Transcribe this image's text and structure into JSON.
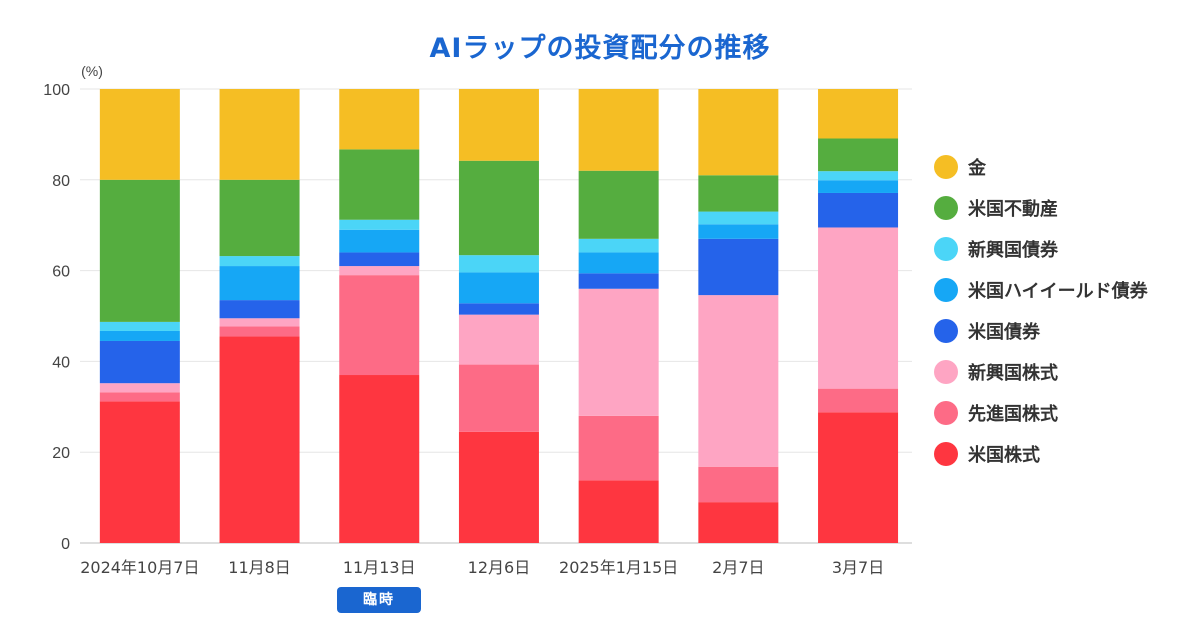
{
  "chart_data": {
    "type": "bar",
    "stacked": true,
    "title": "AIラップの投資配分の推移",
    "ylabel": "(%)",
    "xlabel": "",
    "ylim": [
      0,
      100
    ],
    "yticks": [
      0,
      20,
      40,
      60,
      80,
      100
    ],
    "grid": true,
    "legend_position": "right",
    "categories": [
      "2024年10月7日",
      "11月8日",
      "11月13日",
      "12月6日",
      "2025年1月15日",
      "2月7日",
      "3月7日"
    ],
    "badges": [
      {
        "category": "11月13日",
        "text": "臨時"
      }
    ],
    "series": [
      {
        "name": "米国株式",
        "color": "#fe3640",
        "values": [
          31.2,
          45.5,
          37.0,
          24.5,
          13.8,
          9.0,
          28.8
        ]
      },
      {
        "name": "先進国株式",
        "color": "#fd6b86",
        "values": [
          2.0,
          2.2,
          22.0,
          14.8,
          14.2,
          7.8,
          5.2
        ]
      },
      {
        "name": "新興国株式",
        "color": "#fea5c3",
        "values": [
          2.0,
          1.8,
          2.0,
          11.0,
          28.0,
          37.8,
          35.5
        ]
      },
      {
        "name": "米国債券",
        "color": "#2563ea",
        "values": [
          9.3,
          4.0,
          3.0,
          2.5,
          3.4,
          12.4,
          7.6
        ]
      },
      {
        "name": "米国ハイイールド債券",
        "color": "#16a7f5",
        "values": [
          2.2,
          7.5,
          5.0,
          6.8,
          4.6,
          3.2,
          2.8
        ]
      },
      {
        "name": "新興国債券",
        "color": "#4bd5f7",
        "values": [
          2.0,
          2.2,
          2.2,
          3.8,
          3.0,
          2.8,
          2.0
        ]
      },
      {
        "name": "米国不動産",
        "color": "#55ad3f",
        "values": [
          31.3,
          16.8,
          15.5,
          20.8,
          15.0,
          8.0,
          7.2
        ]
      },
      {
        "name": "金",
        "color": "#f5be24",
        "values": [
          20.0,
          20.0,
          13.3,
          15.8,
          18.0,
          19.0,
          10.9
        ]
      }
    ]
  }
}
